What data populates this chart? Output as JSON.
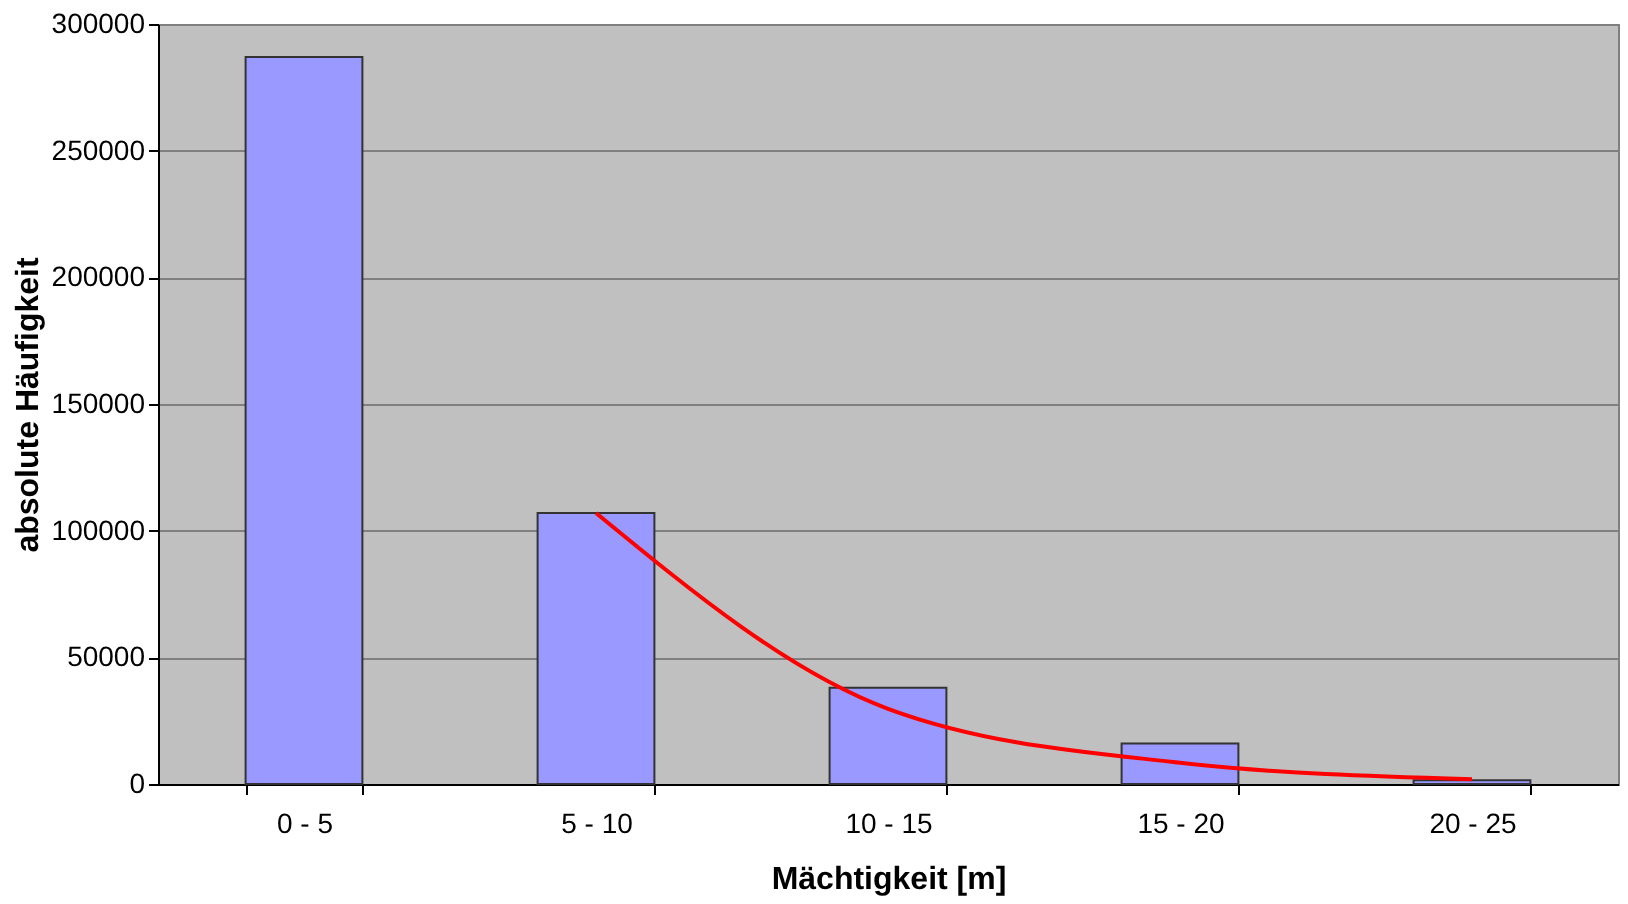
{
  "chart_data": {
    "type": "bar",
    "xlabel": "Mächtigkeit [m]",
    "ylabel": "absolute Häufigkeit",
    "categories": [
      "0 - 5",
      "5 - 10",
      "10 - 15",
      "15 - 20",
      "20 - 25"
    ],
    "ylim": [
      0,
      300000
    ],
    "yticks": [
      0,
      50000,
      100000,
      150000,
      200000,
      250000,
      300000
    ],
    "grid": "y",
    "series": [
      {
        "color": "#9999ff",
        "values": [
          287000,
          107000,
          38000,
          16000,
          1500
        ]
      },
      {
        "type": "line",
        "color": "#ff0000",
        "values": [
          null,
          107000,
          29700,
          8400,
          1900
        ]
      }
    ]
  }
}
